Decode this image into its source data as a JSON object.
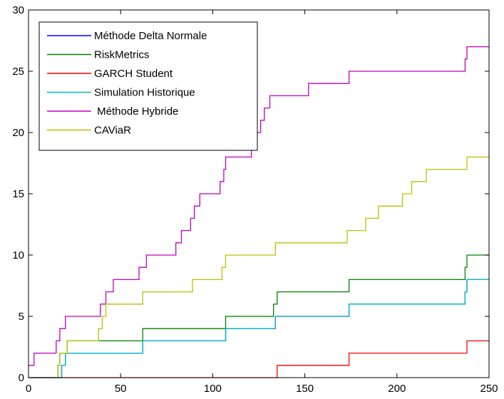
{
  "chart_data": {
    "type": "line",
    "title": "",
    "xlabel": "",
    "ylabel": "",
    "xlim": [
      0,
      250
    ],
    "ylim": [
      0,
      30
    ],
    "xticks": [
      0,
      50,
      100,
      150,
      200,
      250
    ],
    "yticks": [
      0,
      5,
      10,
      15,
      20,
      25,
      30
    ],
    "grid": false,
    "legend_position": "top-left",
    "series": [
      {
        "name": "Méthode Delta Normale",
        "color": "#0000ff",
        "x": [
          0,
          18,
          20,
          22,
          62,
          107,
          134,
          174,
          237,
          238,
          250
        ],
        "y": [
          0,
          1,
          2,
          2,
          3,
          4,
          5,
          6,
          7,
          8,
          8
        ]
      },
      {
        "name": "RiskMetrics",
        "color": "#008000",
        "x": [
          0,
          16,
          17,
          18,
          21,
          23,
          62,
          107,
          133,
          135,
          174,
          236,
          237,
          238,
          250
        ],
        "y": [
          0,
          1,
          2,
          2,
          3,
          3,
          4,
          5,
          6,
          7,
          8,
          8,
          9,
          10,
          10
        ]
      },
      {
        "name": "GARCH Student",
        "color": "#ff0000",
        "x": [
          0,
          135,
          174,
          238,
          250
        ],
        "y": [
          0,
          1,
          2,
          3,
          3
        ]
      },
      {
        "name": "Simulation Historique",
        "color": "#00bfbf",
        "x": [
          0,
          18,
          20,
          22,
          62,
          107,
          134,
          174,
          237,
          238,
          250
        ],
        "y": [
          0,
          1,
          2,
          2,
          3,
          4,
          5,
          6,
          7,
          8,
          8
        ]
      },
      {
        "name": " Méthode Hybride",
        "color": "#bf00bf",
        "x": [
          0,
          3,
          8,
          15,
          17,
          20,
          22,
          25,
          39,
          42,
          44,
          46,
          56,
          60,
          64,
          80,
          83,
          88,
          90,
          93,
          94,
          96,
          104,
          106,
          107,
          108,
          121,
          123,
          126,
          128,
          131,
          132,
          135,
          140,
          152,
          154,
          173,
          174,
          236,
          237,
          238,
          250
        ],
        "y": [
          1,
          2,
          2,
          3,
          4,
          5,
          5,
          5,
          6,
          7,
          7,
          8,
          8,
          9,
          10,
          11,
          12,
          13,
          14,
          15,
          15,
          15,
          16,
          17,
          18,
          18,
          19,
          20,
          21,
          22,
          23,
          23,
          23,
          23,
          24,
          24,
          24,
          25,
          25,
          26,
          27,
          27
        ]
      },
      {
        "name": "CAViaR",
        "color": "#bfbf00",
        "x": [
          0,
          16,
          17,
          18,
          21,
          23,
          38,
          40,
          42,
          44,
          55,
          58,
          62,
          89,
          105,
          107,
          134,
          173,
          174,
          180,
          183,
          190,
          203,
          208,
          213,
          216,
          222,
          237,
          238,
          250
        ],
        "y": [
          0,
          1,
          2,
          2,
          3,
          3,
          4,
          5,
          6,
          6,
          6,
          6,
          7,
          8,
          9,
          10,
          11,
          12,
          12,
          12,
          13,
          14,
          15,
          16,
          16,
          17,
          17,
          17,
          18,
          18
        ]
      }
    ]
  }
}
